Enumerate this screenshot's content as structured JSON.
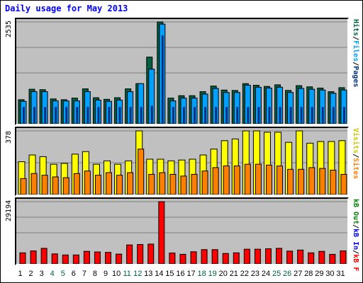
{
  "title": "Daily usage for May 2013",
  "colors": {
    "hits": "#006040",
    "files": "#00a0ff",
    "pages": "#003080",
    "visits": "#ffff00",
    "sites": "#ff8000",
    "kbf": "#ff0000",
    "kbin": "#0000ff",
    "kbout": "#008000",
    "weekday": "#000000",
    "weekend": "#006040"
  },
  "axis": {
    "top_max": "2535",
    "mid_max": "378",
    "bot_max": "29194"
  },
  "legend_top": {
    "pages": "Pages",
    "files": "Files",
    "hits": "Hits",
    "sep1": "/",
    "sep2": "/"
  },
  "legend_mid": {
    "sites": "Sites",
    "visits": "Visits",
    "sep1": "/"
  },
  "legend_bot": {
    "kbf": "kB F",
    "kbin": "kB In",
    "kbout": "kB Out",
    "sep1": "/",
    "sep2": "/"
  },
  "chart_data": {
    "type": "bar",
    "title": "Daily usage for May 2013",
    "x": [
      "1",
      "2",
      "3",
      "4",
      "5",
      "6",
      "7",
      "8",
      "9",
      "10",
      "11",
      "12",
      "13",
      "14",
      "15",
      "16",
      "17",
      "18",
      "19",
      "20",
      "21",
      "22",
      "23",
      "24",
      "25",
      "26",
      "27",
      "28",
      "29",
      "30",
      "31"
    ],
    "weekend_days": [
      "4",
      "5",
      "11",
      "12",
      "18",
      "19",
      "25",
      "26"
    ],
    "ylim": {
      "top": [
        0,
        2535
      ],
      "mid": [
        0,
        378
      ],
      "bot": [
        0,
        29194
      ]
    },
    "series": [
      {
        "name": "Hits",
        "panel": "top",
        "values": [
          600,
          860,
          850,
          620,
          600,
          640,
          870,
          650,
          610,
          650,
          870,
          1000,
          1660,
          2535,
          640,
          700,
          700,
          800,
          940,
          840,
          830,
          1000,
          960,
          930,
          970,
          830,
          950,
          920,
          890,
          800,
          900
        ]
      },
      {
        "name": "Files",
        "panel": "top",
        "values": [
          560,
          800,
          800,
          570,
          570,
          570,
          800,
          590,
          560,
          590,
          800,
          1000,
          1360,
          2480,
          570,
          640,
          640,
          740,
          880,
          780,
          780,
          960,
          910,
          890,
          910,
          780,
          880,
          860,
          840,
          760,
          840
        ]
      },
      {
        "name": "Pages",
        "panel": "top",
        "values": [
          420,
          420,
          420,
          420,
          420,
          420,
          420,
          420,
          420,
          420,
          420,
          420,
          450,
          2200,
          420,
          420,
          420,
          420,
          420,
          420,
          420,
          420,
          420,
          420,
          420,
          420,
          420,
          420,
          420,
          420,
          420
        ]
      },
      {
        "name": "Visits",
        "panel": "mid",
        "values": [
          195,
          235,
          225,
          180,
          185,
          240,
          255,
          180,
          200,
          180,
          200,
          378,
          210,
          210,
          200,
          205,
          210,
          235,
          270,
          320,
          330,
          378,
          378,
          370,
          370,
          310,
          378,
          305,
          315,
          315,
          320
        ]
      },
      {
        "name": "Sites",
        "panel": "mid",
        "values": [
          95,
          125,
          115,
          105,
          100,
          125,
          140,
          115,
          130,
          115,
          130,
          270,
          120,
          130,
          120,
          110,
          120,
          140,
          160,
          170,
          170,
          180,
          180,
          175,
          170,
          150,
          150,
          160,
          155,
          145,
          120
        ]
      },
      {
        "name": "kB F",
        "panel": "bot",
        "values": [
          5200,
          6100,
          7300,
          4700,
          4200,
          4200,
          5900,
          5600,
          5400,
          4600,
          8900,
          9100,
          9300,
          29194,
          5100,
          4500,
          5700,
          6700,
          6700,
          4900,
          5200,
          6900,
          6900,
          7100,
          7300,
          6000,
          6500,
          5200,
          5900,
          4500,
          6100
        ]
      }
    ]
  }
}
